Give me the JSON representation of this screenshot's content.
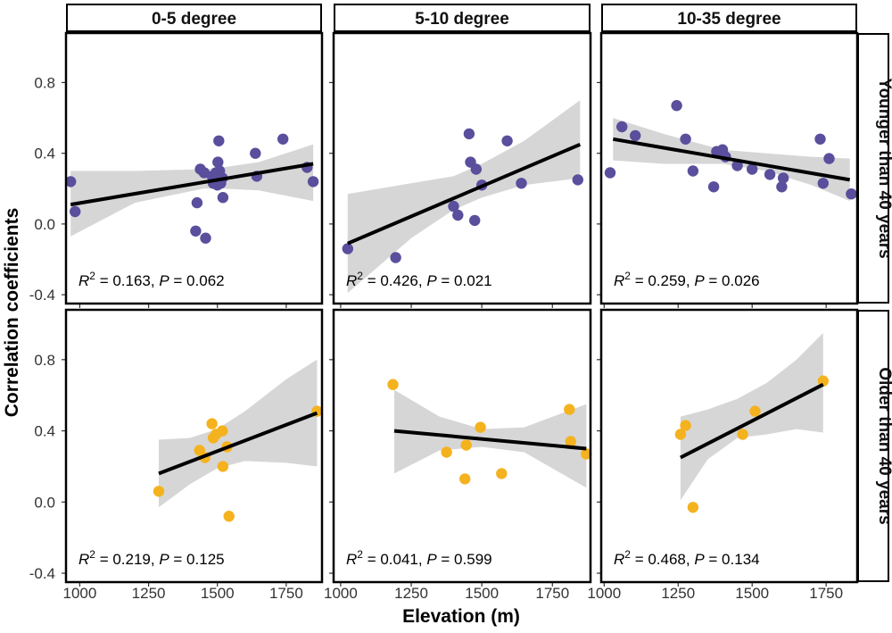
{
  "chart_data": {
    "type": "scatter",
    "xlabel": "Elevation (m)",
    "ylabel": "Correlation coefficients",
    "ylim": [
      -0.45,
      1.08
    ],
    "y_ticks": [
      -0.4,
      0.0,
      0.4,
      0.8
    ],
    "y_tick_labels": [
      "-0.4",
      "0.0",
      "0.4",
      "0.8"
    ],
    "grid": false,
    "columns": [
      {
        "label": "0-5 degree",
        "xlim": [
          950,
          1880
        ],
        "x_ticks": [
          1000,
          1250,
          1500,
          1750
        ],
        "x_tick_labels": [
          "1000",
          "1250",
          "1500",
          "1750"
        ]
      },
      {
        "label": "5-10 degree",
        "xlim": [
          975,
          1885
        ],
        "x_ticks": [
          1000,
          1250,
          1500,
          1750
        ],
        "x_tick_labels": [
          "1000",
          "1250",
          "1500",
          "1750"
        ]
      },
      {
        "label": "10-35 degree",
        "xlim": [
          990,
          1855
        ],
        "x_ticks": [
          1000,
          1250,
          1500,
          1750
        ],
        "x_tick_labels": [
          "1000",
          "1250",
          "1500",
          "1750"
        ]
      }
    ],
    "rows": [
      {
        "label": "Younger than 40 years",
        "point_color": "#594f9c"
      },
      {
        "label": "Older than 40 years",
        "point_color": "#f5b21f"
      }
    ],
    "panels": [
      {
        "row": 0,
        "col": 0,
        "annotation": {
          "r2_label": "R",
          "r2_sup": "2",
          "r2_value": " = 0.163, ",
          "p_label": "P",
          "p_value": " = 0.062"
        },
        "points": {
          "x": [
            967,
            983,
            1421,
            1426,
            1438,
            1452,
            1457,
            1481,
            1485,
            1490,
            1495,
            1500,
            1502,
            1505,
            1508,
            1512,
            1518,
            1520,
            1638,
            1643,
            1738,
            1826,
            1848
          ],
          "y": [
            0.24,
            0.07,
            -0.04,
            0.12,
            0.31,
            0.29,
            -0.08,
            0.27,
            0.23,
            0.24,
            0.29,
            0.22,
            0.35,
            0.47,
            0.3,
            0.23,
            0.26,
            0.15,
            0.4,
            0.27,
            0.48,
            0.32,
            0.24
          ]
        },
        "fit": {
          "x": [
            967,
            1848
          ],
          "y": [
            0.11,
            0.34
          ]
        },
        "band": {
          "x": [
            967,
            1200,
            1450,
            1520,
            1650,
            1848
          ],
          "lower": [
            -0.07,
            0.12,
            0.2,
            0.2,
            0.19,
            0.13
          ],
          "upper": [
            0.3,
            0.3,
            0.31,
            0.32,
            0.35,
            0.45
          ]
        }
      },
      {
        "row": 0,
        "col": 1,
        "annotation": {
          "r2_label": "R",
          "r2_sup": "2",
          "r2_value": " = 0.426, ",
          "p_label": "P",
          "p_value": " = 0.021"
        },
        "points": {
          "x": [
            1025,
            1195,
            1400,
            1415,
            1455,
            1460,
            1475,
            1480,
            1500,
            1590,
            1640,
            1840
          ],
          "y": [
            -0.14,
            -0.19,
            0.1,
            0.05,
            0.51,
            0.35,
            0.02,
            0.31,
            0.22,
            0.47,
            0.23,
            0.25
          ]
        },
        "fit": {
          "x": [
            1025,
            1848
          ],
          "y": [
            -0.11,
            0.45
          ]
        },
        "band": {
          "x": [
            1025,
            1250,
            1400,
            1500,
            1650,
            1848
          ],
          "lower": [
            -0.39,
            -0.08,
            0.08,
            0.15,
            0.22,
            0.26
          ],
          "upper": [
            0.17,
            0.23,
            0.27,
            0.34,
            0.47,
            0.7
          ]
        }
      },
      {
        "row": 0,
        "col": 2,
        "annotation": {
          "r2_label": "R",
          "r2_sup": "2",
          "r2_value": " = 0.259, ",
          "p_label": "P",
          "p_value": " = 0.026"
        },
        "points": {
          "x": [
            1020,
            1060,
            1105,
            1245,
            1275,
            1300,
            1370,
            1380,
            1400,
            1410,
            1450,
            1500,
            1560,
            1600,
            1605,
            1730,
            1740,
            1760,
            1835
          ],
          "y": [
            0.29,
            0.55,
            0.5,
            0.67,
            0.48,
            0.3,
            0.21,
            0.41,
            0.42,
            0.38,
            0.33,
            0.31,
            0.28,
            0.21,
            0.26,
            0.48,
            0.23,
            0.37,
            0.17
          ]
        },
        "fit": {
          "x": [
            1030,
            1830
          ],
          "y": [
            0.48,
            0.25
          ]
        },
        "band": {
          "x": [
            1030,
            1200,
            1400,
            1550,
            1700,
            1830
          ],
          "lower": [
            0.36,
            0.34,
            0.34,
            0.3,
            0.22,
            0.13
          ],
          "upper": [
            0.6,
            0.51,
            0.42,
            0.4,
            0.38,
            0.37
          ]
        }
      },
      {
        "row": 1,
        "col": 0,
        "annotation": {
          "r2_label": "R",
          "r2_sup": "2",
          "r2_value": " = 0.219, ",
          "p_label": "P",
          "p_value": " = 0.125"
        },
        "points": {
          "x": [
            1287,
            1435,
            1455,
            1480,
            1485,
            1495,
            1518,
            1520,
            1535,
            1542,
            1862
          ],
          "y": [
            0.06,
            0.29,
            0.25,
            0.44,
            0.36,
            0.38,
            0.4,
            0.2,
            0.31,
            -0.08,
            0.51
          ]
        },
        "fit": {
          "x": [
            1287,
            1862
          ],
          "y": [
            0.16,
            0.5
          ]
        },
        "band": {
          "x": [
            1287,
            1400,
            1500,
            1600,
            1750,
            1862
          ],
          "lower": [
            -0.03,
            0.1,
            0.19,
            0.23,
            0.22,
            0.2
          ],
          "upper": [
            0.35,
            0.36,
            0.41,
            0.51,
            0.69,
            0.8
          ]
        }
      },
      {
        "row": 1,
        "col": 1,
        "annotation": {
          "r2_label": "R",
          "r2_sup": "2",
          "r2_value": " = 0.041, ",
          "p_label": "P",
          "p_value": " = 0.599"
        },
        "points": {
          "x": [
            1185,
            1375,
            1440,
            1445,
            1495,
            1570,
            1810,
            1815,
            1870
          ],
          "y": [
            0.66,
            0.28,
            0.13,
            0.32,
            0.42,
            0.16,
            0.52,
            0.34,
            0.27
          ]
        },
        "fit": {
          "x": [
            1190,
            1870
          ],
          "y": [
            0.4,
            0.3
          ]
        },
        "band": {
          "x": [
            1190,
            1350,
            1500,
            1650,
            1870
          ],
          "lower": [
            0.16,
            0.29,
            0.31,
            0.28,
            0.08
          ],
          "upper": [
            0.63,
            0.48,
            0.41,
            0.42,
            0.55
          ]
        }
      },
      {
        "row": 1,
        "col": 2,
        "annotation": {
          "r2_label": "R",
          "r2_sup": "2",
          "r2_value": " = 0.468, ",
          "p_label": "P",
          "p_value": " = 0.134"
        },
        "points": {
          "x": [
            1258,
            1275,
            1300,
            1468,
            1510,
            1740
          ],
          "y": [
            0.38,
            0.43,
            -0.03,
            0.38,
            0.51,
            0.68
          ]
        },
        "fit": {
          "x": [
            1258,
            1740
          ],
          "y": [
            0.25,
            0.66
          ]
        },
        "band": {
          "x": [
            1258,
            1350,
            1450,
            1550,
            1650,
            1740
          ],
          "lower": [
            0.01,
            0.24,
            0.36,
            0.38,
            0.41,
            0.39
          ],
          "upper": [
            0.48,
            0.52,
            0.58,
            0.67,
            0.8,
            0.95
          ]
        }
      }
    ]
  }
}
